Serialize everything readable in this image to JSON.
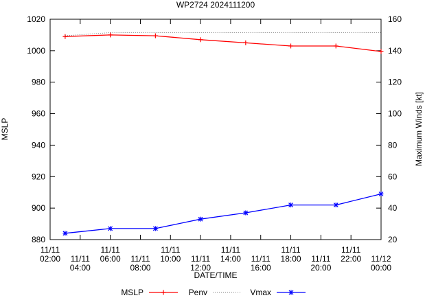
{
  "chart_data": {
    "type": "line",
    "title": "WP2724 2024111200",
    "xlabel": "DATE/TIME",
    "ylabel_left": "MSLP",
    "ylabel_right": "Maximum Winds [kt]",
    "x_range_hours": [
      0,
      22
    ],
    "x_ticks": [
      {
        "hour": 0,
        "date": "11/11",
        "time": "02:00"
      },
      {
        "hour": 2,
        "date": "11/11",
        "time": "04:00"
      },
      {
        "hour": 4,
        "date": "11/11",
        "time": "06:00"
      },
      {
        "hour": 6,
        "date": "11/11",
        "time": "08:00"
      },
      {
        "hour": 8,
        "date": "11/11",
        "time": "10:00"
      },
      {
        "hour": 10,
        "date": "11/11",
        "time": "12:00"
      },
      {
        "hour": 12,
        "date": "11/11",
        "time": "14:00"
      },
      {
        "hour": 14,
        "date": "11/11",
        "time": "16:00"
      },
      {
        "hour": 16,
        "date": "11/11",
        "time": "18:00"
      },
      {
        "hour": 18,
        "date": "11/11",
        "time": "20:00"
      },
      {
        "hour": 20,
        "date": "11/11",
        "time": "22:00"
      },
      {
        "hour": 22,
        "date": "11/12",
        "time": "00:00"
      }
    ],
    "ylim_left": [
      880,
      1020
    ],
    "yticks_left": [
      880,
      900,
      920,
      940,
      960,
      980,
      1000,
      1020
    ],
    "ylim_right": [
      20,
      160
    ],
    "yticks_right": [
      20,
      40,
      60,
      80,
      100,
      120,
      140,
      160
    ],
    "series": [
      {
        "name": "MSLP",
        "axis": "left",
        "color": "#ff0000",
        "marker": "plus",
        "points": [
          {
            "hour": 1,
            "value": 1009
          },
          {
            "hour": 4,
            "value": 1010
          },
          {
            "hour": 7,
            "value": 1009.5
          },
          {
            "hour": 10,
            "value": 1007
          },
          {
            "hour": 13,
            "value": 1005
          },
          {
            "hour": 16,
            "value": 1003
          },
          {
            "hour": 19,
            "value": 1003
          },
          {
            "hour": 22,
            "value": 999.5
          }
        ]
      },
      {
        "name": "Penv",
        "axis": "left",
        "color": "#555555",
        "marker": "none",
        "style": "dotted",
        "points": [
          {
            "hour": 1,
            "value": 1009.5
          },
          {
            "hour": 4,
            "value": 1011.5
          },
          {
            "hour": 22,
            "value": 1011.5
          }
        ]
      },
      {
        "name": "Vmax",
        "axis": "right",
        "color": "#0000ff",
        "marker": "star",
        "points": [
          {
            "hour": 1,
            "value": 24
          },
          {
            "hour": 4,
            "value": 27
          },
          {
            "hour": 7,
            "value": 27
          },
          {
            "hour": 10,
            "value": 33
          },
          {
            "hour": 13,
            "value": 37
          },
          {
            "hour": 16,
            "value": 42
          },
          {
            "hour": 19,
            "value": 42
          },
          {
            "hour": 22,
            "value": 49
          }
        ]
      }
    ],
    "legend": {
      "placement": "bottom",
      "entries": [
        {
          "label": "MSLP",
          "series": "MSLP"
        },
        {
          "label": "Penv",
          "series": "Penv"
        },
        {
          "label": "Vmax",
          "series": "Vmax"
        }
      ]
    }
  }
}
